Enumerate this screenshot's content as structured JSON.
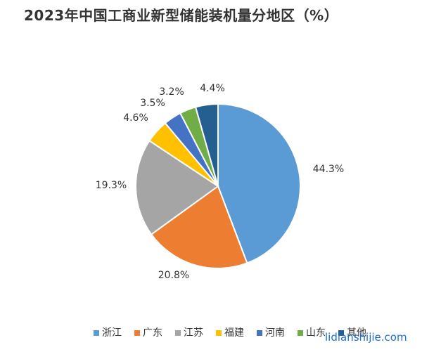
{
  "title": "2023年中国工商业新型储能装机量分地区（%）",
  "watermark_url": "lidianshijie.com",
  "chart_data": {
    "type": "pie",
    "title": "2023年中国工商业新型储能装机量分地区（%）",
    "unit": "%",
    "legend_position": "bottom",
    "slices": [
      {
        "label": "浙江",
        "value": 44.3,
        "display": "44.3%",
        "color": "#5b9bd5"
      },
      {
        "label": "广东",
        "value": 20.8,
        "display": "20.8%",
        "color": "#ed7d31"
      },
      {
        "label": "江苏",
        "value": 19.3,
        "display": "19.3%",
        "color": "#a5a5a5"
      },
      {
        "label": "福建",
        "value": 4.6,
        "display": "4.6%",
        "color": "#ffc000"
      },
      {
        "label": "河南",
        "value": 3.5,
        "display": "3.5%",
        "color": "#4472c4"
      },
      {
        "label": "山东",
        "value": 3.2,
        "display": "3.2%",
        "color": "#70ad47"
      },
      {
        "label": "其他",
        "value": 4.4,
        "display": "4.4%",
        "color": "#255e91"
      }
    ]
  }
}
